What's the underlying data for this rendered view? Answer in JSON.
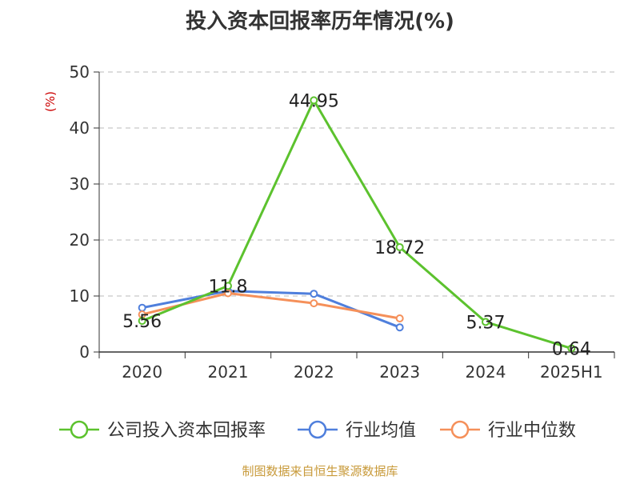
{
  "chart_data": {
    "type": "line",
    "title": "投入资本回报率历年情况(%)",
    "ylabel": "(%)",
    "xlabel": "",
    "ylim": [
      0,
      50
    ],
    "yticks": [
      0,
      10,
      20,
      30,
      40,
      50
    ],
    "categories": [
      "2020",
      "2021",
      "2022",
      "2023",
      "2024",
      "2025H1"
    ],
    "grid": true,
    "legend_position": "bottom",
    "series": [
      {
        "name": "公司投入资本回报率",
        "color": "#5cc22e",
        "values": [
          5.56,
          11.8,
          44.95,
          18.72,
          5.37,
          0.64
        ],
        "labels": [
          "5.56",
          "11.8",
          "44.95",
          "18.72",
          "5.37",
          "0.64"
        ]
      },
      {
        "name": "行业均值",
        "color": "#4f7fdc",
        "values": [
          7.9,
          10.9,
          10.4,
          4.4,
          null,
          null
        ]
      },
      {
        "name": "行业中位数",
        "color": "#f5905a",
        "values": [
          6.7,
          10.5,
          8.7,
          6.0,
          null,
          null
        ]
      }
    ]
  },
  "footer": {
    "source": "制图数据来自恒生聚源数据库"
  }
}
